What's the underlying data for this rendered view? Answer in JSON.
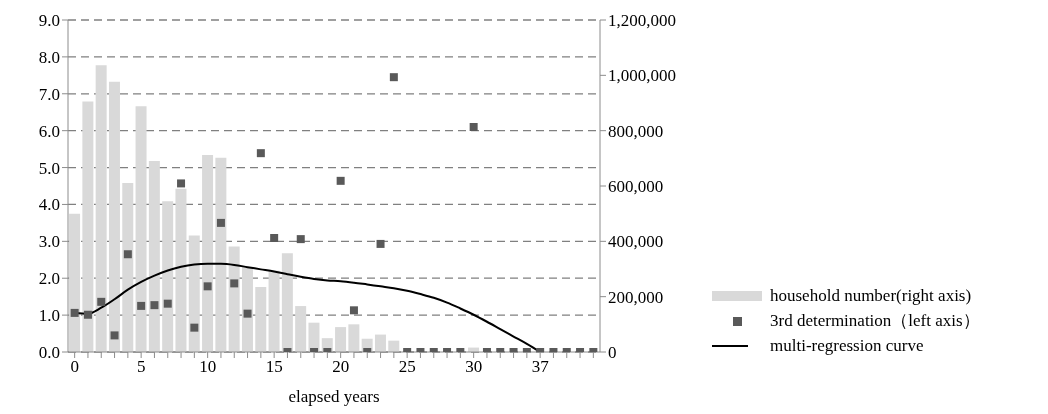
{
  "chart_data": {
    "type": "bar",
    "xlabel": "elapsed years",
    "categories": [
      "0",
      null,
      null,
      null,
      null,
      "5",
      null,
      null,
      null,
      null,
      "10",
      null,
      null,
      null,
      null,
      "15",
      null,
      null,
      null,
      null,
      "20",
      null,
      null,
      null,
      null,
      "25",
      null,
      null,
      null,
      null,
      "30",
      null,
      null,
      null,
      null,
      "37",
      null,
      null,
      null,
      null
    ],
    "series": [
      {
        "name": "household number(right axis)",
        "axis": "y2",
        "color": "#d9d9d9",
        "values": [
          500000,
          905000,
          1036000,
          977000,
          611000,
          888000,
          690000,
          545000,
          590000,
          421000,
          712000,
          702000,
          381000,
          307000,
          235000,
          294000,
          357000,
          166000,
          106000,
          50000,
          90000,
          100000,
          48000,
          63000,
          41000,
          0,
          0,
          0,
          0,
          0,
          16000,
          0,
          0,
          0,
          0,
          0,
          0,
          0,
          0,
          0
        ]
      },
      {
        "name": "3rd determination（left axis）",
        "type": "scatter",
        "marker": "square",
        "color": "#595959",
        "values": [
          1.06,
          1.01,
          1.36,
          0.45,
          2.65,
          1.25,
          1.27,
          1.31,
          4.57,
          0.66,
          1.78,
          3.5,
          1.86,
          1.04,
          5.39,
          3.09,
          0,
          3.06,
          0,
          0,
          4.64,
          1.13,
          0,
          2.93,
          7.45,
          0,
          0,
          0,
          0,
          0,
          6.1,
          0,
          0,
          0,
          0,
          0,
          0,
          0,
          0,
          0
        ]
      },
      {
        "name": "multi-regression curve",
        "type": "line",
        "color": "#000000",
        "values": [
          1.06,
          1.04,
          1.2,
          1.43,
          1.69,
          1.9,
          2.07,
          2.21,
          2.31,
          2.37,
          2.39,
          2.39,
          2.36,
          2.3,
          2.24,
          2.18,
          2.11,
          2.04,
          1.98,
          1.94,
          1.92,
          1.88,
          1.83,
          1.78,
          1.73,
          1.66,
          1.57,
          1.47,
          1.34,
          1.18,
          1.01,
          0.82,
          0.62,
          0.42,
          0.22,
          0,
          null,
          null,
          null,
          null
        ]
      }
    ],
    "ylim": [
      0,
      9
    ],
    "yticks": [
      {
        "value": 0,
        "label": "0.0"
      },
      {
        "value": 1,
        "label": "1.0"
      },
      {
        "value": 2,
        "label": "2.0"
      },
      {
        "value": 3,
        "label": "3.0"
      },
      {
        "value": 4,
        "label": "4.0"
      },
      {
        "value": 5,
        "label": "5.0"
      },
      {
        "value": 6,
        "label": "6.0"
      },
      {
        "value": 7,
        "label": "7.0"
      },
      {
        "value": 8,
        "label": "8.0"
      },
      {
        "value": 9,
        "label": "9.0"
      }
    ],
    "y2lim": [
      0,
      1200000
    ],
    "y2ticks": [
      0,
      {
        "value": 200000,
        "label": "200,000"
      },
      {
        "value": 400000,
        "label": "400,000"
      },
      {
        "value": 600000,
        "label": "600,000"
      },
      {
        "value": 800000,
        "label": "800,000"
      },
      {
        "value": 1000000,
        "label": "1,000,000"
      },
      {
        "value": 1200000,
        "label": "1,200,000"
      }
    ],
    "grid": "y",
    "legend": "bottom right"
  }
}
